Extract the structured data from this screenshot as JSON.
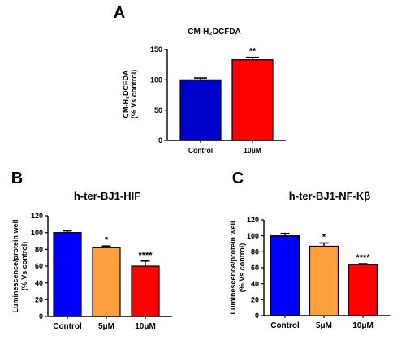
{
  "chart_data": [
    {
      "panel_letter": "A",
      "type": "bar",
      "title": "CM-H₂DCFDA",
      "ylabel_line1": "CM-H₂DCFDA",
      "ylabel_line2": "(% Vs control)",
      "categories": [
        "Control",
        "10μM"
      ],
      "values": [
        100,
        133
      ],
      "errors": [
        3,
        4
      ],
      "colors": [
        "#0000cc",
        "#ff0000"
      ],
      "significance": [
        "",
        "**"
      ],
      "ylim": [
        0,
        150
      ],
      "yticks": [
        0,
        50,
        100,
        150
      ]
    },
    {
      "panel_letter": "B",
      "type": "bar",
      "title": "h-ter-BJ1-HIF",
      "ylabel_line1": "Luminescence/protein well",
      "ylabel_line2": "(% Vs control)",
      "categories": [
        "Control",
        "5μM",
        "10μM"
      ],
      "values": [
        100,
        82,
        60
      ],
      "errors": [
        2,
        2,
        6
      ],
      "colors": [
        "#0000ff",
        "#ffa040",
        "#ff0000"
      ],
      "significance": [
        "",
        "*",
        "****"
      ],
      "ylim": [
        0,
        120
      ],
      "yticks": [
        0,
        20,
        40,
        60,
        80,
        100,
        120
      ]
    },
    {
      "panel_letter": "C",
      "type": "bar",
      "title": "h-ter-BJ1-NF-Kβ",
      "ylabel_line1": "Luminescence/protein well",
      "ylabel_line2": "(% Vs control)",
      "categories": [
        "Control",
        "5μM",
        "10μM"
      ],
      "values": [
        100,
        87,
        64
      ],
      "errors": [
        3,
        4,
        1
      ],
      "colors": [
        "#0000ff",
        "#ffa040",
        "#ff0000"
      ],
      "significance": [
        "",
        "*",
        "****"
      ],
      "ylim": [
        0,
        120
      ],
      "yticks": [
        0,
        20,
        40,
        60,
        80,
        100,
        120
      ]
    }
  ]
}
